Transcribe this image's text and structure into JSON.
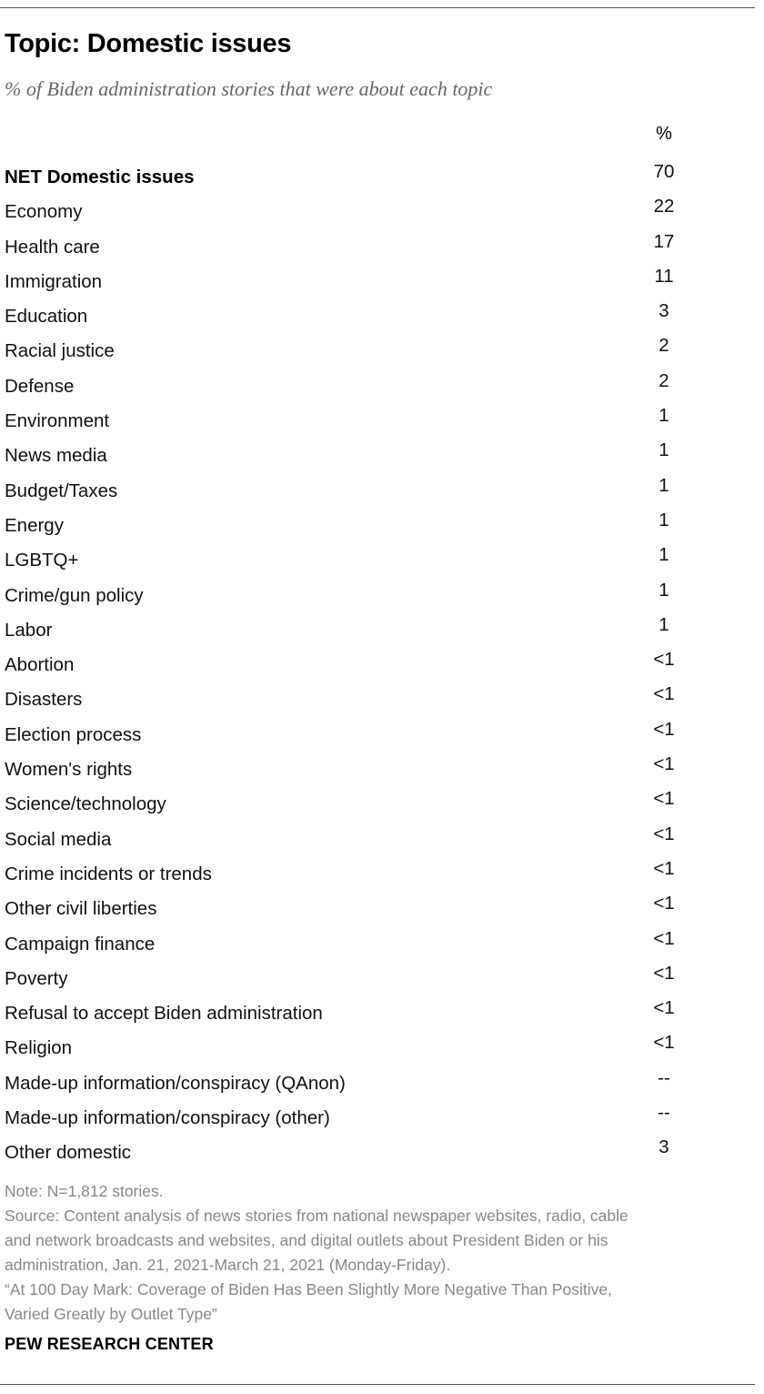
{
  "title": "Topic: Domestic issues",
  "subtitle": "% of Biden administration stories that were about each topic",
  "column_header": "%",
  "rows": [
    {
      "label": "NET Domestic issues",
      "value": "70",
      "net": true
    },
    {
      "label": "Economy",
      "value": "22"
    },
    {
      "label": "Health care",
      "value": "17"
    },
    {
      "label": "Immigration",
      "value": "11"
    },
    {
      "label": "Education",
      "value": "3"
    },
    {
      "label": "Racial justice",
      "value": "2"
    },
    {
      "label": "Defense",
      "value": "2"
    },
    {
      "label": "Environment",
      "value": "1"
    },
    {
      "label": "News media",
      "value": "1"
    },
    {
      "label": "Budget/Taxes",
      "value": "1"
    },
    {
      "label": "Energy",
      "value": "1"
    },
    {
      "label": "LGBTQ+",
      "value": "1"
    },
    {
      "label": "Crime/gun policy",
      "value": "1"
    },
    {
      "label": "Labor",
      "value": "1"
    },
    {
      "label": "Abortion",
      "value": "<1"
    },
    {
      "label": "Disasters",
      "value": "<1"
    },
    {
      "label": "Election process",
      "value": "<1"
    },
    {
      "label": "Women's rights",
      "value": "<1"
    },
    {
      "label": "Science/technology",
      "value": "<1"
    },
    {
      "label": "Social media",
      "value": "<1"
    },
    {
      "label": "Crime incidents or trends",
      "value": "<1"
    },
    {
      "label": "Other civil liberties",
      "value": "<1"
    },
    {
      "label": "Campaign finance",
      "value": "<1"
    },
    {
      "label": "Poverty",
      "value": "<1"
    },
    {
      "label": "Refusal to accept Biden administration",
      "value": "<1"
    },
    {
      "label": "Religion",
      "value": "<1"
    },
    {
      "label": "Made-up information/conspiracy (QAnon)",
      "value": "--"
    },
    {
      "label": "Made-up information/conspiracy (other)",
      "value": "--"
    },
    {
      "label": "Other domestic",
      "value": "3"
    }
  ],
  "notes": {
    "note": "Note: N=1,812 stories.",
    "source_line_1": "Source: Content analysis of news stories from national newspaper websites, radio, cable",
    "source_line_2": "and network broadcasts and websites, and digital outlets about President Biden or his",
    "source_line_3": "administration, Jan. 21, 2021-March 21, 2021 (Monday-Friday).",
    "report_line_1": "“At 100 Day Mark: Coverage of Biden Has Been Slightly More Negative Than Positive,",
    "report_line_2": "Varied Greatly by Outlet Type”"
  },
  "brand": "PEW RESEARCH CENTER"
}
